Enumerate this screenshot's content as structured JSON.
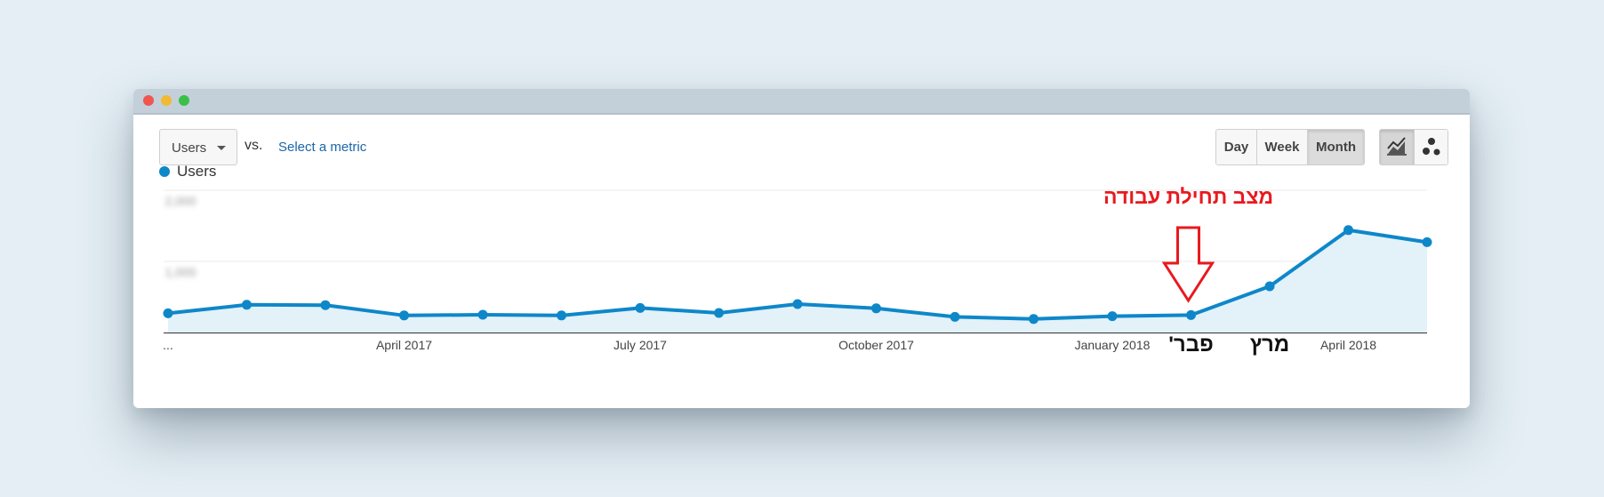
{
  "window": {
    "traffic_lights": [
      "close",
      "minimize",
      "maximize"
    ]
  },
  "toolbar": {
    "metric_label": "Users",
    "vs_label": "vs.",
    "select_metric_label": "Select a metric",
    "period_buttons": [
      "Day",
      "Week",
      "Month"
    ],
    "active_period": "Month",
    "chart_type_buttons": [
      "line-chart-icon",
      "motion-chart-icon"
    ],
    "active_chart_type": "line-chart-icon"
  },
  "colors": {
    "series": "#0e87c9",
    "area": "#e3f1f9",
    "annotation": "#e8191f",
    "link": "#1a66a8"
  },
  "chart_data": {
    "type": "area",
    "series": [
      {
        "name": "Users",
        "values": [
          270,
          390,
          385,
          240,
          250,
          240,
          345,
          275,
          400,
          340,
          220,
          190,
          230,
          245,
          650,
          1440,
          1270
        ]
      }
    ],
    "x_tick_labels": [
      "...",
      "April 2017",
      "July 2017",
      "October 2017",
      "January 2018",
      "April 2018"
    ],
    "ylim": [
      0,
      2000
    ],
    "y_ticks": [
      1000,
      2000
    ],
    "y_tick_labels_blurred": true,
    "grid": true,
    "legend_position": "top-left",
    "annotations": {
      "arrow_text": "מצב תחילת עבודה",
      "month_labels": [
        {
          "text": "פבר'",
          "point_index": 13
        },
        {
          "text": "מרץ",
          "point_index": 14
        }
      ],
      "arrow_point_index": 13
    }
  }
}
